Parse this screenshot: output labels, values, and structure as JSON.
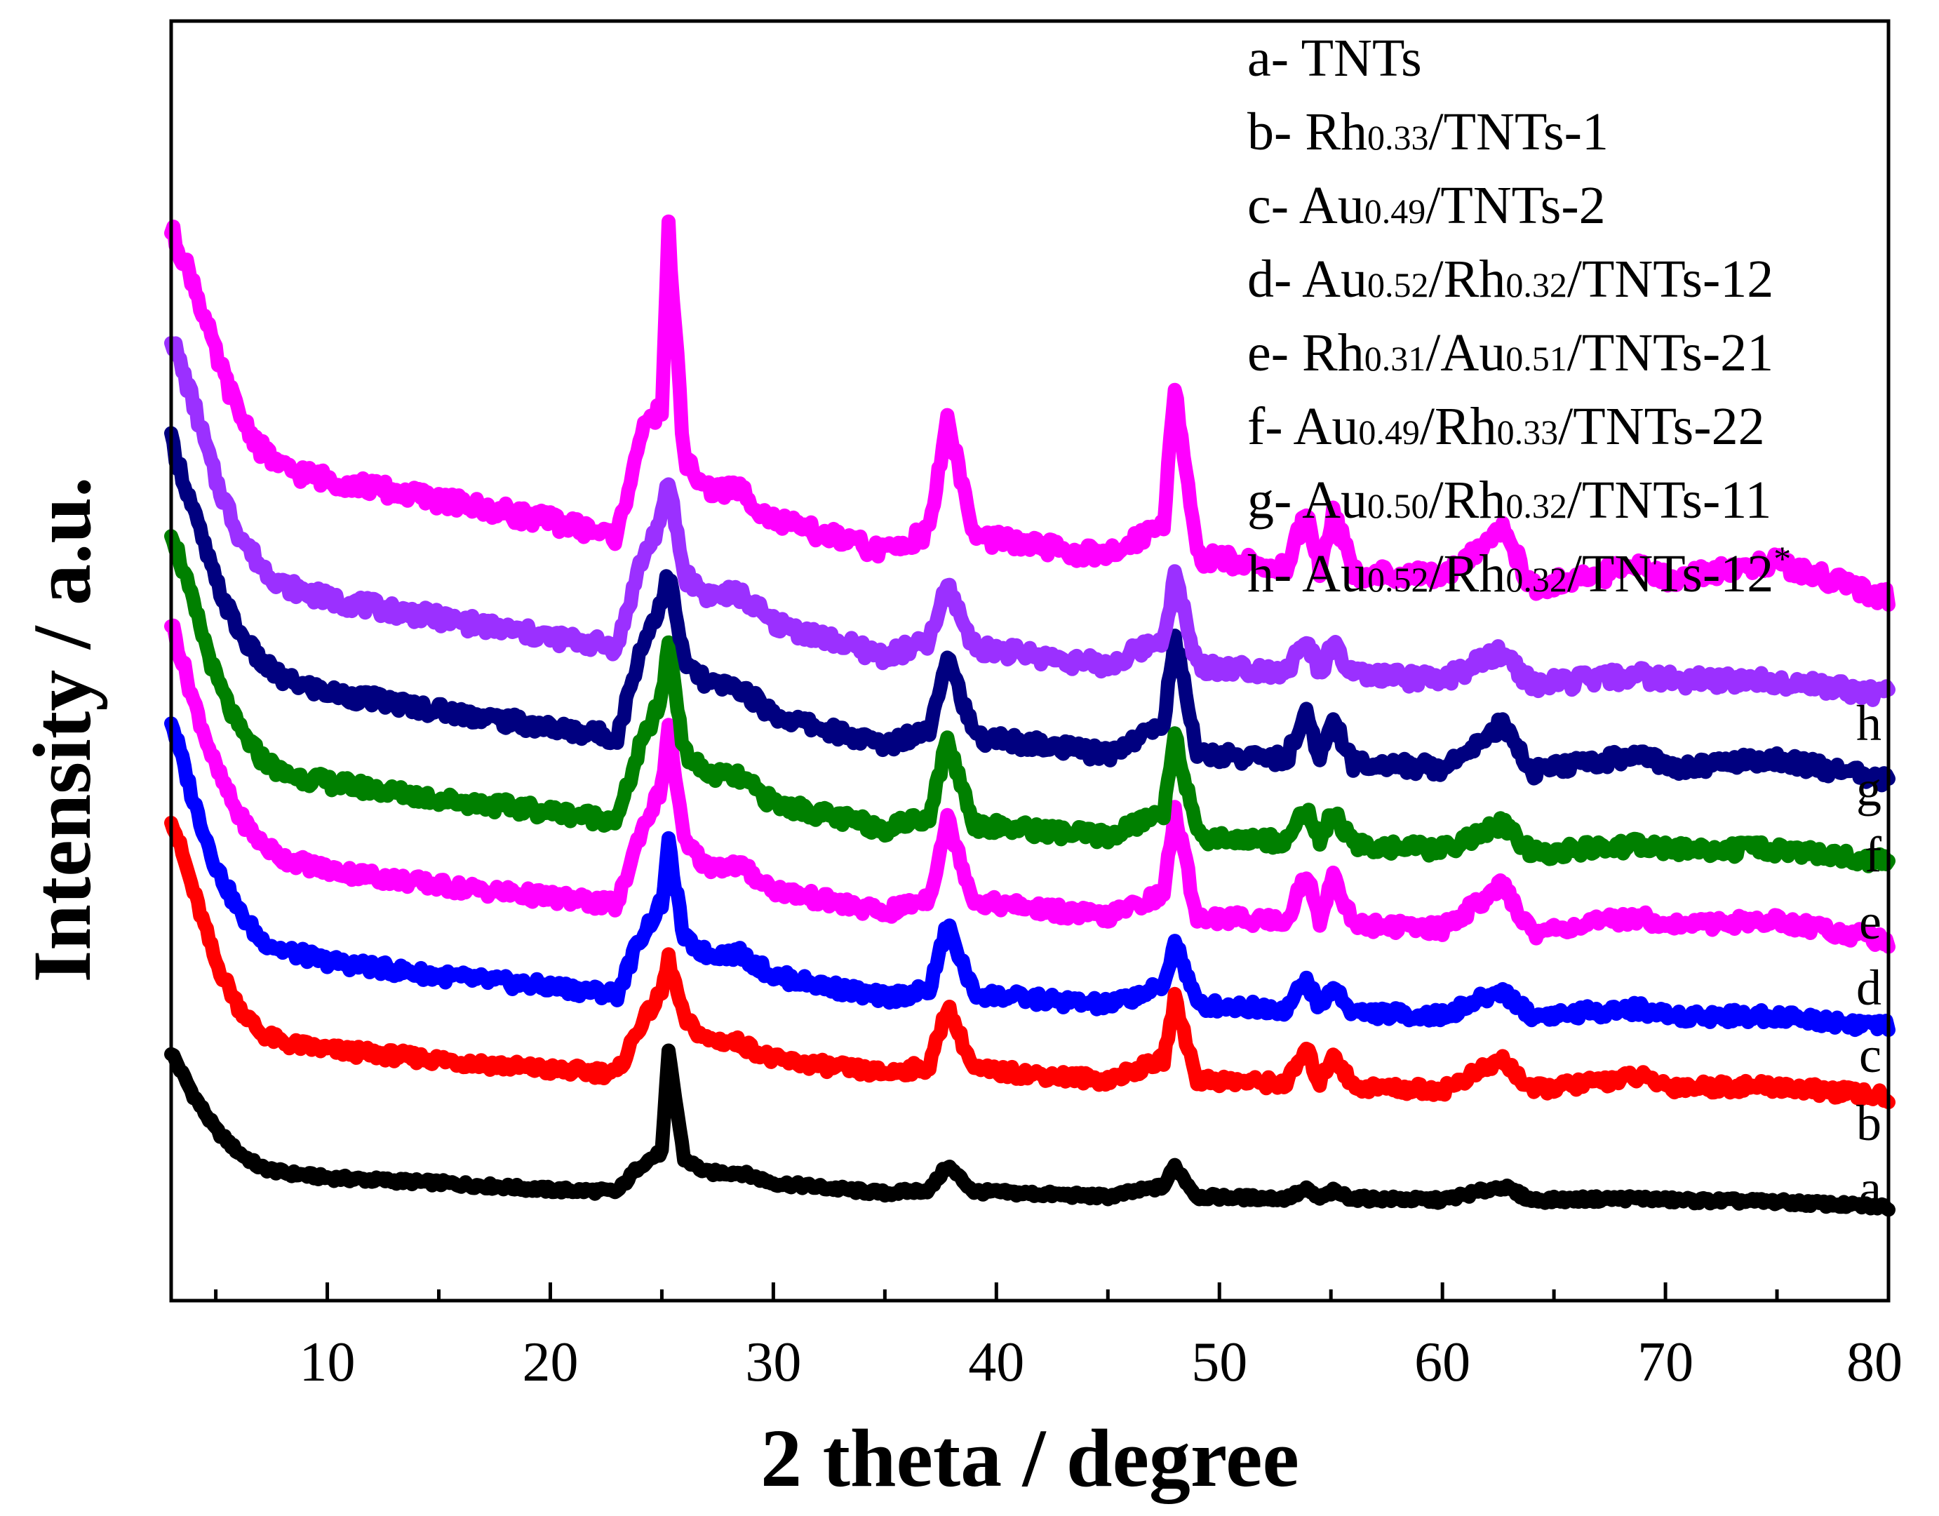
{
  "chart_data": {
    "type": "line",
    "subtype": "stacked-offset XRD patterns",
    "xlabel": "2 theta / degree",
    "ylabel": "Intensity / a.u.",
    "xlim": [
      3,
      80
    ],
    "xticks_major": [
      10,
      20,
      30,
      40,
      50,
      60,
      70,
      80
    ],
    "xticks_minor": [
      5,
      15,
      25,
      35,
      45,
      55,
      65,
      75
    ],
    "yticks": [],
    "grid": false,
    "legend_placement": "top-right",
    "peak_positions_2theta": [
      25.3,
      37.8,
      48.0,
      53.9,
      55.1,
      62.7,
      68.8,
      70.3,
      75.0
    ],
    "series": [
      {
        "id": "a",
        "curve_label": "a",
        "color": "#000000",
        "legend": {
          "prefix": "a- ",
          "parts": [
            {
              "t": "TNTs",
              "sub": false
            }
          ]
        },
        "values": {
          "x": [
            3,
            4,
            5,
            6,
            7,
            8,
            10,
            15,
            20,
            23,
            24,
            25,
            25.3,
            26,
            27,
            28.5,
            30,
            35,
            37,
            37.8,
            39,
            45,
            47.5,
            48.0,
            49,
            53,
            53.9,
            54.5,
            55.1,
            56,
            60,
            62.7,
            64,
            68.8,
            70.3,
            75,
            80
          ],
          "y": [
            1.0,
            0.75,
            0.55,
            0.42,
            0.33,
            0.3,
            0.27,
            0.24,
            0.2,
            0.19,
            0.34,
            0.42,
            1.0,
            0.38,
            0.3,
            0.3,
            0.24,
            0.18,
            0.2,
            0.34,
            0.19,
            0.16,
            0.22,
            0.34,
            0.16,
            0.15,
            0.2,
            0.15,
            0.19,
            0.15,
            0.14,
            0.22,
            0.14,
            0.15,
            0.14,
            0.13,
            0.1
          ]
        }
      },
      {
        "id": "b",
        "curve_label": "b",
        "color": "#ff0000",
        "legend": {
          "prefix": "b- ",
          "parts": [
            {
              "t": "Rh",
              "sub": false
            },
            {
              "t": "0.33",
              "sub": true
            },
            {
              "t": "/TNTs-1",
              "sub": false
            }
          ]
        },
        "values": {
          "x": [
            3,
            4,
            5,
            6,
            7,
            8,
            10,
            15,
            20,
            23,
            24,
            25,
            25.3,
            26,
            27,
            28.5,
            30,
            35,
            37,
            37.8,
            39,
            45,
            47.5,
            48.0,
            49,
            53,
            53.9,
            54.5,
            55.1,
            56,
            60,
            62.7,
            64,
            68.8,
            70.3,
            75,
            80
          ],
          "y": [
            1.0,
            0.78,
            0.57,
            0.44,
            0.36,
            0.33,
            0.31,
            0.28,
            0.25,
            0.24,
            0.38,
            0.48,
            0.58,
            0.4,
            0.34,
            0.33,
            0.28,
            0.24,
            0.26,
            0.44,
            0.25,
            0.22,
            0.28,
            0.46,
            0.22,
            0.21,
            0.31,
            0.21,
            0.3,
            0.2,
            0.19,
            0.28,
            0.19,
            0.23,
            0.2,
            0.2,
            0.17
          ]
        }
      },
      {
        "id": "c",
        "curve_label": "c",
        "color": "#0000ff",
        "legend": {
          "prefix": "c- ",
          "parts": [
            {
              "t": "Au",
              "sub": false
            },
            {
              "t": "0.49",
              "sub": true
            },
            {
              "t": "/TNTs-2",
              "sub": false
            }
          ]
        },
        "values": {
          "x": [
            3,
            4,
            5,
            6,
            7,
            8,
            10,
            15,
            20,
            23,
            24,
            25,
            25.3,
            26,
            27,
            28.5,
            30,
            35,
            37,
            37.8,
            39,
            45,
            47.5,
            48.0,
            49,
            53,
            53.9,
            54.5,
            55.1,
            56,
            60,
            62.7,
            64,
            68.8,
            70.3,
            75,
            80
          ],
          "y": [
            1.0,
            0.78,
            0.6,
            0.48,
            0.4,
            0.37,
            0.34,
            0.3,
            0.27,
            0.25,
            0.4,
            0.5,
            0.66,
            0.4,
            0.36,
            0.36,
            0.3,
            0.24,
            0.26,
            0.44,
            0.25,
            0.22,
            0.27,
            0.4,
            0.22,
            0.21,
            0.29,
            0.21,
            0.27,
            0.2,
            0.19,
            0.26,
            0.19,
            0.21,
            0.19,
            0.19,
            0.16
          ]
        }
      },
      {
        "id": "d",
        "curve_label": "d",
        "color": "#ff00ff",
        "legend": {
          "prefix": "d- ",
          "parts": [
            {
              "t": "Au",
              "sub": false
            },
            {
              "t": "0.52",
              "sub": true
            },
            {
              "t": "/Rh",
              "sub": false
            },
            {
              "t": "0.32",
              "sub": true
            },
            {
              "t": "/TNTs-12",
              "sub": false
            }
          ]
        },
        "values": {
          "x": [
            3,
            4,
            5,
            6,
            7,
            8,
            10,
            15,
            20,
            23,
            24,
            25,
            25.3,
            26,
            27,
            28.5,
            30,
            35,
            37,
            37.8,
            39,
            45,
            47.5,
            48.0,
            49,
            53,
            53.9,
            54.5,
            55.1,
            56,
            60,
            62.7,
            64,
            68.8,
            70.3,
            75,
            80
          ],
          "y": [
            1.0,
            0.8,
            0.63,
            0.51,
            0.44,
            0.4,
            0.37,
            0.33,
            0.3,
            0.28,
            0.46,
            0.58,
            0.74,
            0.44,
            0.38,
            0.38,
            0.32,
            0.26,
            0.3,
            0.5,
            0.29,
            0.25,
            0.31,
            0.52,
            0.25,
            0.24,
            0.36,
            0.24,
            0.36,
            0.23,
            0.22,
            0.33,
            0.21,
            0.25,
            0.23,
            0.24,
            0.19
          ]
        }
      },
      {
        "id": "e",
        "curve_label": "e",
        "color": "#008000",
        "legend": {
          "prefix": "e- ",
          "parts": [
            {
              "t": "Rh",
              "sub": false
            },
            {
              "t": "0.31",
              "sub": true
            },
            {
              "t": "/Au",
              "sub": false
            },
            {
              "t": "0.51",
              "sub": true
            },
            {
              "t": "/TNTs-21",
              "sub": false
            }
          ]
        },
        "values": {
          "x": [
            3,
            4,
            5,
            6,
            7,
            8,
            10,
            15,
            20,
            23,
            24,
            25,
            25.3,
            26,
            27,
            28.5,
            30,
            35,
            37,
            37.8,
            39,
            45,
            47.5,
            48.0,
            49,
            53,
            53.9,
            54.5,
            55.1,
            56,
            60,
            62.7,
            64,
            68.8,
            70.3,
            75,
            80
          ],
          "y": [
            1.0,
            0.82,
            0.65,
            0.53,
            0.46,
            0.42,
            0.4,
            0.36,
            0.33,
            0.31,
            0.48,
            0.6,
            0.74,
            0.47,
            0.42,
            0.41,
            0.35,
            0.29,
            0.32,
            0.5,
            0.3,
            0.27,
            0.33,
            0.52,
            0.27,
            0.26,
            0.34,
            0.26,
            0.33,
            0.25,
            0.24,
            0.3,
            0.23,
            0.25,
            0.24,
            0.24,
            0.21
          ]
        }
      },
      {
        "id": "f",
        "curve_label": "f",
        "color": "#000080",
        "legend": {
          "prefix": "f- ",
          "parts": [
            {
              "t": "Au",
              "sub": false
            },
            {
              "t": "0.49",
              "sub": true
            },
            {
              "t": "/Rh",
              "sub": false
            },
            {
              "t": "0.33",
              "sub": true
            },
            {
              "t": "/TNTs-22",
              "sub": false
            }
          ]
        },
        "values": {
          "x": [
            3,
            4,
            5,
            6,
            7,
            8,
            10,
            15,
            20,
            23,
            24,
            25,
            25.3,
            26,
            27,
            28.5,
            30,
            35,
            37,
            37.8,
            39,
            45,
            47.5,
            48.0,
            49,
            53,
            53.9,
            54.5,
            55.1,
            56,
            60,
            62.7,
            64,
            68.8,
            70.3,
            75,
            80
          ],
          "y": [
            1.0,
            0.84,
            0.68,
            0.57,
            0.5,
            0.46,
            0.43,
            0.39,
            0.35,
            0.33,
            0.52,
            0.64,
            0.7,
            0.5,
            0.45,
            0.44,
            0.38,
            0.31,
            0.35,
            0.52,
            0.33,
            0.29,
            0.36,
            0.56,
            0.29,
            0.28,
            0.38,
            0.28,
            0.37,
            0.27,
            0.26,
            0.36,
            0.25,
            0.29,
            0.26,
            0.28,
            0.23
          ]
        }
      },
      {
        "id": "g",
        "curve_label": "g",
        "color": "#9b30ff",
        "legend": {
          "prefix": "g- ",
          "parts": [
            {
              "t": "Au",
              "sub": false
            },
            {
              "t": "0.50",
              "sub": true
            },
            {
              "t": "/Rh",
              "sub": false
            },
            {
              "t": "0.32",
              "sub": true
            },
            {
              "t": "/TNTs-11",
              "sub": false
            }
          ]
        },
        "values": {
          "x": [
            3,
            4,
            5,
            6,
            7,
            8,
            10,
            15,
            20,
            23,
            24,
            25,
            25.3,
            26,
            27,
            28.5,
            30,
            35,
            37,
            37.8,
            39,
            45,
            47.5,
            48.0,
            49,
            53,
            53.9,
            54.5,
            55.1,
            56,
            60,
            62.7,
            64,
            68.8,
            70.3,
            75,
            80
          ],
          "y": [
            1.0,
            0.86,
            0.7,
            0.59,
            0.52,
            0.48,
            0.45,
            0.41,
            0.37,
            0.35,
            0.52,
            0.62,
            0.7,
            0.5,
            0.46,
            0.46,
            0.4,
            0.33,
            0.36,
            0.48,
            0.35,
            0.31,
            0.37,
            0.5,
            0.31,
            0.3,
            0.36,
            0.3,
            0.35,
            0.29,
            0.28,
            0.34,
            0.27,
            0.29,
            0.28,
            0.28,
            0.25
          ]
        }
      },
      {
        "id": "h",
        "curve_label": "h",
        "color": "#ff00ff",
        "legend": {
          "prefix": "h- ",
          "parts": [
            {
              "t": "Au",
              "sub": false
            },
            {
              "t": "0.52",
              "sub": true
            },
            {
              "t": "/Rh",
              "sub": false
            },
            {
              "t": "0.32",
              "sub": true
            },
            {
              "t": "/TNTs-12",
              "sub": false
            },
            {
              "t": "*",
              "sup": true
            }
          ]
        },
        "values": {
          "x": [
            3,
            4,
            5,
            6,
            7,
            8,
            10,
            15,
            20,
            23,
            24,
            25,
            25.3,
            26,
            27,
            28.5,
            30,
            35,
            37,
            37.8,
            39,
            45,
            47.5,
            48.0,
            49,
            53,
            53.9,
            54.5,
            55.1,
            56,
            60,
            62.7,
            64,
            68.8,
            70.3,
            75,
            80
          ],
          "y": [
            1.0,
            0.9,
            0.76,
            0.65,
            0.58,
            0.54,
            0.52,
            0.48,
            0.44,
            0.41,
            0.6,
            0.66,
            1.0,
            0.56,
            0.5,
            0.5,
            0.44,
            0.38,
            0.42,
            0.64,
            0.41,
            0.37,
            0.44,
            0.7,
            0.37,
            0.35,
            0.46,
            0.35,
            0.46,
            0.34,
            0.33,
            0.43,
            0.31,
            0.35,
            0.33,
            0.36,
            0.29
          ]
        }
      }
    ]
  }
}
